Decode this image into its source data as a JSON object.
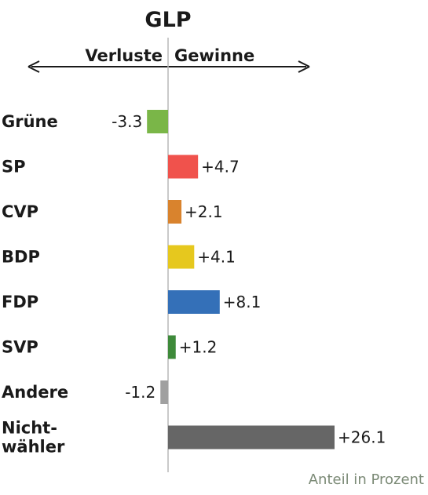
{
  "chart_data": {
    "type": "bar",
    "orientation": "horizontal",
    "title": "GLP",
    "direction_labels": {
      "negative": "Verluste",
      "positive": "Gewinne"
    },
    "categories": [
      "Grüne",
      "SP",
      "CVP",
      "BDP",
      "FDP",
      "SVP",
      "Andere",
      "Nicht-\nwähler"
    ],
    "category_lines": [
      [
        "Grüne"
      ],
      [
        "SP"
      ],
      [
        "CVP"
      ],
      [
        "BDP"
      ],
      [
        "FDP"
      ],
      [
        "SVP"
      ],
      [
        "Andere"
      ],
      [
        "Nicht-",
        "wähler"
      ]
    ],
    "values": [
      -3.3,
      4.7,
      2.1,
      4.1,
      8.1,
      1.2,
      -1.2,
      26.1
    ],
    "value_labels": [
      "-3.3",
      "+4.7",
      "+2.1",
      "+4.1",
      "+8.1",
      "+1.2",
      "-1.2",
      "+26.1"
    ],
    "colors": [
      "#7ab648",
      "#f0524c",
      "#d9832d",
      "#e6c81e",
      "#3470b8",
      "#3e8a3a",
      "#a0a0a0",
      "#666666"
    ],
    "note": "Anteil in Prozent",
    "xlim": [
      -26.1,
      26.1
    ],
    "grid": false,
    "legend": "none"
  }
}
